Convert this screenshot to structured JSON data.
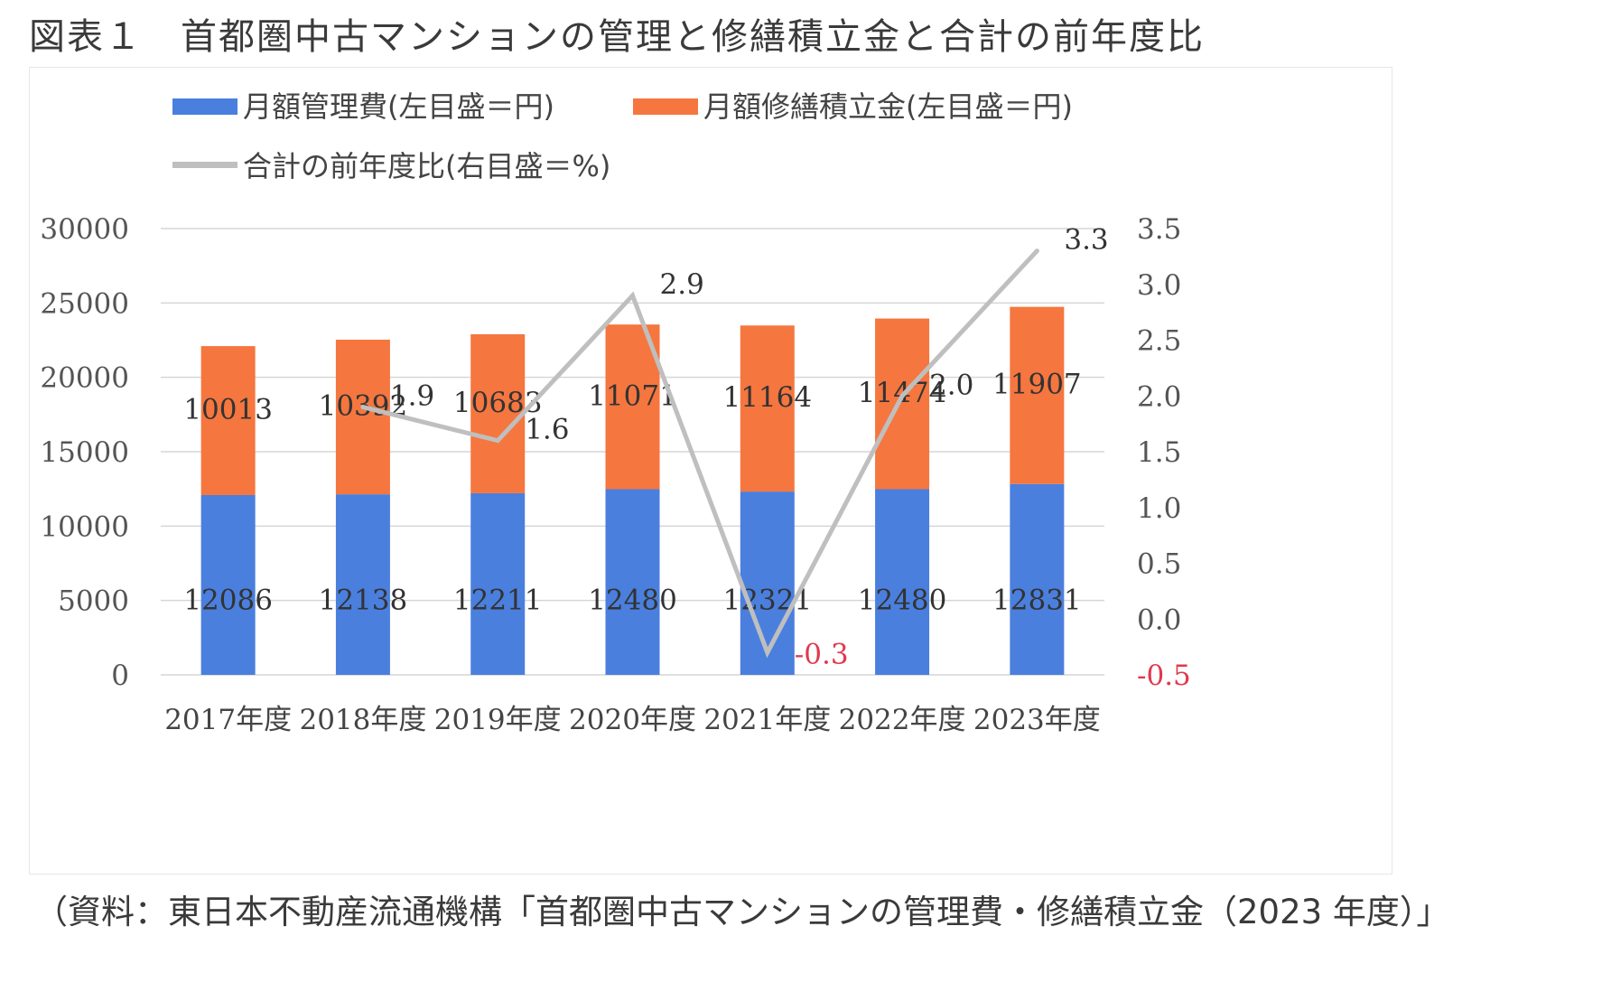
{
  "figure": {
    "title": "図表１　首都圏中古マンションの管理と修繕積立金と合計の前年度比",
    "source": "（資料：東日本不動産流通機構「首都圏中古マンションの管理費・修繕積立金（2023 年度）」"
  },
  "chart_data": {
    "type": "bar",
    "stacked": true,
    "categories": [
      "2017年度",
      "2018年度",
      "2019年度",
      "2020年度",
      "2021年度",
      "2022年度",
      "2023年度"
    ],
    "series": [
      {
        "name": "月額管理費(左目盛＝円)",
        "axis": "left",
        "color": "#4a7fde",
        "values": [
          12086,
          12138,
          12211,
          12480,
          12321,
          12480,
          12831
        ]
      },
      {
        "name": "月額修繕積立金(左目盛＝円)",
        "axis": "left",
        "color": "#f5763f",
        "values": [
          10013,
          10392,
          10683,
          11071,
          11164,
          11474,
          11907
        ]
      },
      {
        "name": "合計の前年度比(右目盛＝%)",
        "axis": "right",
        "type": "line",
        "color": "#bfbfbf",
        "x": [
          "2018年度",
          "2019年度",
          "2020年度",
          "2021年度",
          "2022年度",
          "2023年度"
        ],
        "values": [
          1.9,
          1.6,
          2.9,
          -0.3,
          2.0,
          3.3
        ],
        "labels": [
          "1.9",
          "1.6",
          "2.9",
          "-0.3",
          "2.0",
          "3.3"
        ]
      }
    ],
    "left_axis": {
      "min": 0,
      "max": 30000,
      "ticks": [
        "0",
        "5000",
        "10000",
        "15000",
        "20000",
        "25000",
        "30000"
      ]
    },
    "right_axis": {
      "min": -0.5,
      "max": 3.5,
      "ticks": [
        "-0.5",
        "0.0",
        "0.5",
        "1.0",
        "1.5",
        "2.0",
        "2.5",
        "3.0",
        "3.5"
      ]
    },
    "negative_color": "#e0394d",
    "grid": true,
    "legend_position": "top"
  }
}
